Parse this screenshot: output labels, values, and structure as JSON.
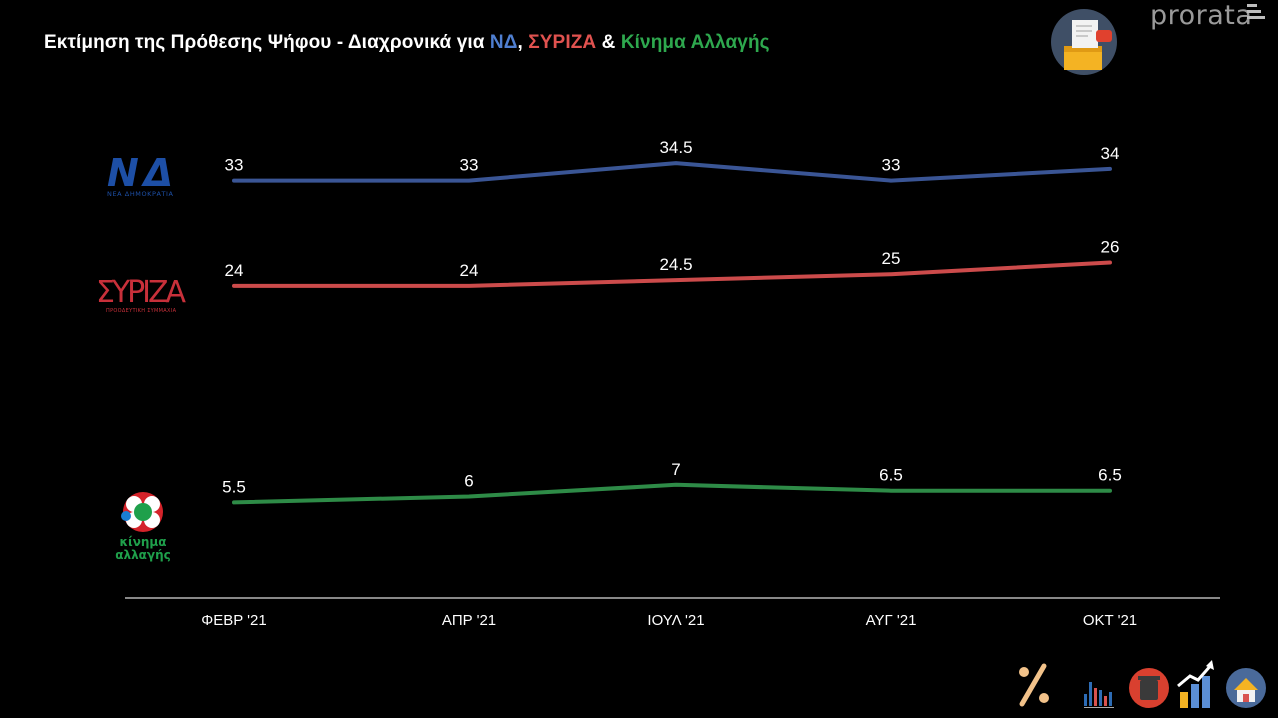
{
  "header": {
    "title_prefix": "Εκτίμηση της Πρόθεσης Ψήφου - Διαχρονικά για ",
    "title_nd": "ΝΔ",
    "title_comma": ", ",
    "title_syriza": "ΣΥΡΙΖΑ",
    "title_amp": " & ",
    "title_kinal": "Κίνημα Αλλαγής",
    "brand": "prorata"
  },
  "logos": {
    "nd_text": "ΝΔ",
    "nd_sub": "ΝΕΑ ΔΗΜΟΚΡΑΤΙΑ",
    "syriza_text": "ΣΥΡΙΖΑ",
    "syriza_sub": "ΠΡΟΟΔΕΥΤΙΚΗ ΣΥΜΜΑΧΙΑ",
    "kinal_line1": "κίνημα",
    "kinal_line2": "αλλαγής"
  },
  "colors": {
    "nd": "#3a5595",
    "syriza": "#cc4b4b",
    "kinal": "#2e8b47",
    "title_nd": "#4f7fd1",
    "title_syriza": "#e0524f",
    "title_kinal": "#2ea84e",
    "axis": "#d9d9d9"
  },
  "chart_data": {
    "type": "line",
    "categories": [
      "ΦΕΒΡ '21",
      "ΑΠΡ '21",
      "ΙΟΥΛ '21",
      "ΑΥΓ '21",
      "ΟΚΤ '21"
    ],
    "series": [
      {
        "name": "ΝΔ",
        "values": [
          33,
          33,
          34.5,
          33,
          34
        ],
        "labels": [
          "33",
          "33",
          "34.5",
          "33",
          "34"
        ]
      },
      {
        "name": "ΣΥΡΙΖΑ",
        "values": [
          24,
          24,
          24.5,
          25,
          26
        ],
        "labels": [
          "24",
          "24",
          "24.5",
          "25",
          "26"
        ]
      },
      {
        "name": "Κίνημα Αλλαγής",
        "values": [
          5.5,
          6,
          7,
          6.5,
          6.5
        ],
        "labels": [
          "5.5",
          "6",
          "7",
          "6.5",
          "6.5"
        ]
      }
    ],
    "grid": false,
    "legend": "logos-left"
  },
  "icons": [
    "vote-box-icon",
    "percent-icon",
    "bar-chart-icon",
    "trash-bin-icon",
    "growth-chart-icon",
    "house-icon"
  ]
}
